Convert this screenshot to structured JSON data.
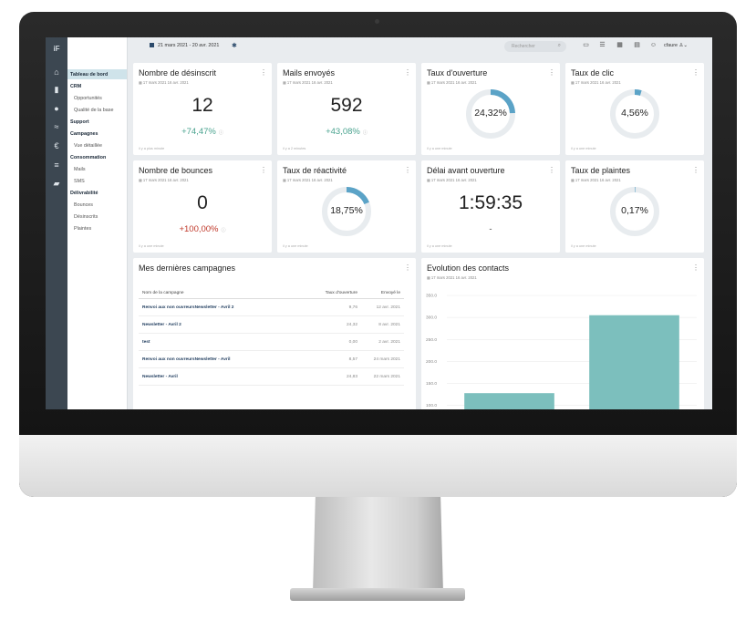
{
  "sidebar": {
    "logo": "iF",
    "items": [
      {
        "label": "Tableau de bord",
        "type": "active"
      },
      {
        "label": "CRM",
        "type": "heading"
      },
      {
        "label": "Opportunités",
        "type": "sub"
      },
      {
        "label": "Qualité de la base",
        "type": "sub"
      },
      {
        "label": "Support",
        "type": "heading"
      },
      {
        "label": "Campagnes",
        "type": "heading"
      },
      {
        "label": "Vue détaillée",
        "type": "sub"
      },
      {
        "label": "Consommation",
        "type": "heading"
      },
      {
        "label": "Mails",
        "type": "sub"
      },
      {
        "label": "SMS",
        "type": "sub"
      },
      {
        "label": "Délivrabilité",
        "type": "heading"
      },
      {
        "label": "Bounces",
        "type": "sub"
      },
      {
        "label": "Désinscrits",
        "type": "sub"
      },
      {
        "label": "Plaintes",
        "type": "sub"
      }
    ]
  },
  "topbar": {
    "date_range": "21 mars 2021  -  20 avr. 2021",
    "search_placeholder": "Rechercher",
    "user": "cfaure"
  },
  "cards": {
    "desinscrit": {
      "title": "Nombre de désinscrit",
      "date": "17 mars 2021 16 avr. 2021",
      "value": "12",
      "delta": "+74,47%",
      "foot": "il y a plus minute"
    },
    "mails": {
      "title": "Mails envoyés",
      "date": "17 mars 2021 16 avr. 2021",
      "value": "592",
      "delta": "+43,08%",
      "foot": "il y a 2 minutes"
    },
    "ouverture": {
      "title": "Taux d'ouverture",
      "date": "17 mars 2021 16 avr. 2021",
      "pct": "24,32%",
      "fraction": 0.2432,
      "foot": "il y a une minute"
    },
    "clic": {
      "title": "Taux de clic",
      "date": "17 mars 2021 16 avr. 2021",
      "pct": "4,56%",
      "fraction": 0.0456,
      "foot": "il y a une minute"
    },
    "bounces": {
      "title": "Nombre de bounces",
      "date": "17 mars 2021 16 avr. 2021",
      "value": "0",
      "delta": "+100,00%",
      "foot": "il y a une minute"
    },
    "reactivite": {
      "title": "Taux de réactivité",
      "date": "17 mars 2021 16 avr. 2021",
      "pct": "18,75%",
      "fraction": 0.1875,
      "foot": "il y a une minute"
    },
    "delai": {
      "title": "Délai avant ouverture",
      "date": "17 mars 2021 16 avr. 2021",
      "value": "1:59:35",
      "delta": "-",
      "foot": "il y a une minute"
    },
    "plaintes": {
      "title": "Taux de plaintes",
      "date": "17 mars 2021 16 avr. 2021",
      "pct": "0,17%",
      "fraction": 0.0017,
      "foot": "il y a une minute"
    }
  },
  "campaigns": {
    "title": "Mes dernières campagnes",
    "columns": [
      "Nom de la campagne",
      "Taux d'ouverture",
      "Envoyé le"
    ],
    "rows": [
      {
        "name": "Renvoi aux non ouvreursNewsletter - Avril 2",
        "rate": "9,76",
        "sent": "12 avr. 2021"
      },
      {
        "name": "Newsletter - Avril 2",
        "rate": "24,32",
        "sent": "8 avr. 2021"
      },
      {
        "name": "test",
        "rate": "0,00",
        "sent": "2 avr. 2021"
      },
      {
        "name": "Renvoi aux non ouvreursNewsletter - Avril",
        "rate": "8,57",
        "sent": "24 mars 2021"
      },
      {
        "name": "Newsletter - Avril",
        "rate": "24,83",
        "sent": "22 mars 2021"
      }
    ]
  },
  "evolution": {
    "title": "Evolution des contacts",
    "date": "17 mars 2021 16 avr. 2021"
  },
  "chart_data": {
    "type": "bar",
    "categories": [
      "",
      ""
    ],
    "values": [
      128,
      305
    ],
    "ylim": [
      0,
      350
    ],
    "yticks": [
      "100.0",
      "150.0",
      "200.0",
      "250.0",
      "300.0",
      "350.0"
    ],
    "color": "#7cbfbd"
  },
  "colors": {
    "accent": "#5ba3c7",
    "donut_track": "#e8ecef",
    "positive": "#4aa38f",
    "negative": "#c0392b"
  }
}
